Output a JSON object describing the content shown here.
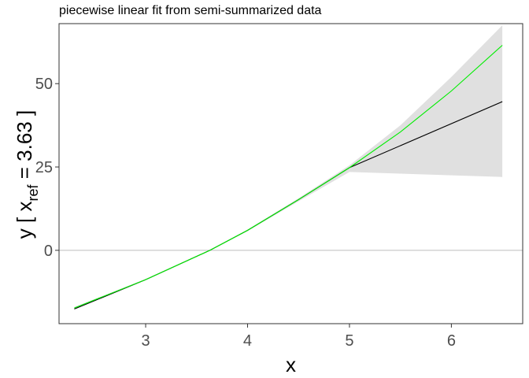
{
  "chart_data": {
    "type": "line",
    "title": "piecewise linear fit from semi-summarized data",
    "xlabel": "x",
    "ylabel": {
      "prefix": "y  [ x",
      "subscript": "ref",
      "suffix": "  =  3.63 ]"
    },
    "x_range": [
      2.15,
      6.7
    ],
    "y_range": [
      -22,
      68
    ],
    "x_ticks": [
      3,
      4,
      5,
      6
    ],
    "y_ticks": [
      0,
      25,
      50
    ],
    "reference_line_y": 0,
    "grid": false,
    "series": [
      {
        "kind": "band",
        "color": "#e0e0e0",
        "x": [
          2.3,
          3.0,
          3.63,
          4.0,
          4.5,
          5.0,
          5.5,
          6.0,
          6.5
        ],
        "lower": [
          -17.5,
          -8.9,
          0,
          5.8,
          14.7,
          23.5,
          23.0,
          22.5,
          22.0
        ],
        "upper": [
          -17.0,
          -8.6,
          0,
          6.2,
          15.6,
          25.5,
          37.5,
          52.0,
          67.5
        ]
      },
      {
        "kind": "line",
        "color": "#000000",
        "x": [
          2.3,
          3.0,
          3.63,
          4.0,
          4.5,
          5.0,
          6.5
        ],
        "y": [
          -17.6,
          -8.8,
          0,
          6.0,
          15.2,
          24.8,
          44.6
        ]
      },
      {
        "kind": "line",
        "color": "#00ee00",
        "x": [
          2.3,
          3.0,
          3.63,
          4.0,
          4.5,
          5.0,
          5.5,
          6.0,
          6.5
        ],
        "y": [
          -17.3,
          -8.8,
          0,
          6.0,
          15.2,
          24.8,
          35.5,
          47.8,
          61.5
        ]
      }
    ]
  }
}
